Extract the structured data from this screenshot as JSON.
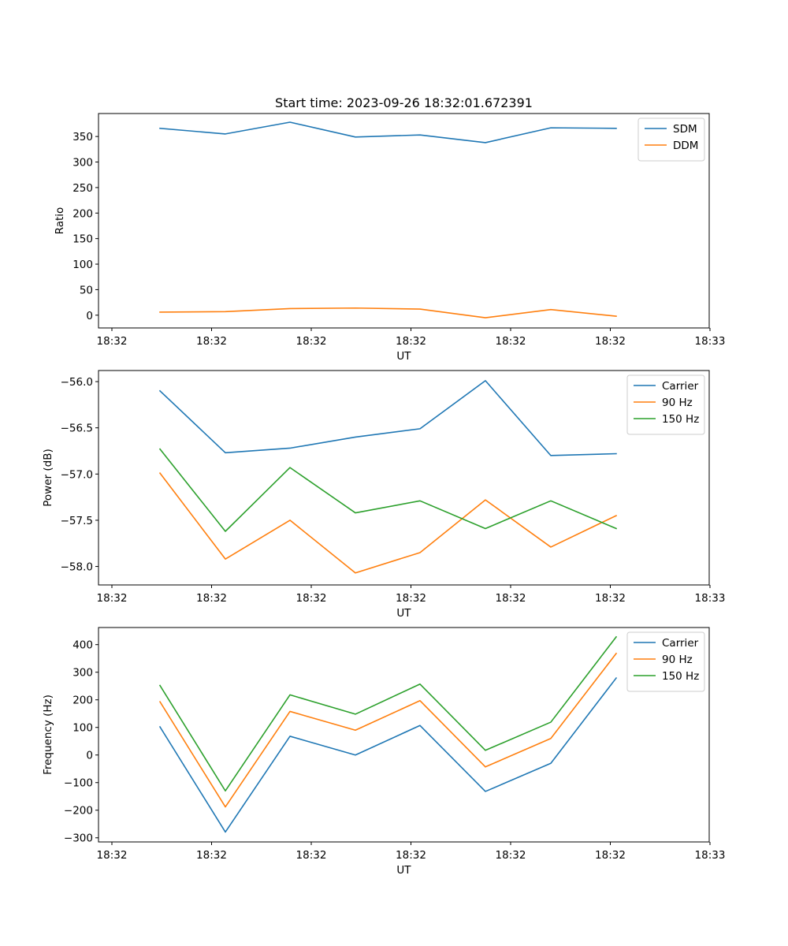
{
  "title": "Start time: 2023-09-26 18:32:01.672391",
  "x_tick_labels": [
    "18:32",
    "18:32",
    "18:32",
    "18:32",
    "18:32",
    "18:32",
    "18:33"
  ],
  "colors": {
    "blue": "#1f77b4",
    "orange": "#ff7f0e",
    "green": "#2ca02c"
  },
  "chart_data": [
    {
      "type": "line",
      "title": "Start time: 2023-09-26 18:32:01.672391",
      "xlabel": "UT",
      "ylabel": "Ratio",
      "ylim": [
        -25,
        395
      ],
      "yticks": [
        0,
        50,
        100,
        150,
        200,
        250,
        300,
        350
      ],
      "legend_position": "top-right",
      "series": [
        {
          "name": "SDM",
          "color": "#1f77b4",
          "values": [
            366,
            355,
            378,
            349,
            353,
            338,
            367,
            366
          ]
        },
        {
          "name": "DDM",
          "color": "#ff7f0e",
          "values": [
            6,
            7,
            13,
            14,
            12,
            -5,
            11,
            -2
          ]
        }
      ]
    },
    {
      "type": "line",
      "title": "",
      "xlabel": "UT",
      "ylabel": "Power (dB)",
      "ylim": [
        -58.2,
        -55.88
      ],
      "yticks": [
        -58.0,
        -57.5,
        -57.0,
        -56.5,
        -56.0
      ],
      "legend_position": "top-right",
      "series": [
        {
          "name": "Carrier",
          "color": "#1f77b4",
          "values": [
            -56.1,
            -56.77,
            -56.72,
            -56.6,
            -56.51,
            -55.99,
            -56.8,
            -56.78
          ]
        },
        {
          "name": "90 Hz",
          "color": "#ff7f0e",
          "values": [
            -56.99,
            -57.92,
            -57.5,
            -58.07,
            -57.85,
            -57.28,
            -57.79,
            -57.45
          ]
        },
        {
          "name": "150 Hz",
          "color": "#2ca02c",
          "values": [
            -56.73,
            -57.62,
            -56.93,
            -57.42,
            -57.29,
            -57.59,
            -57.29,
            -57.59
          ]
        }
      ]
    },
    {
      "type": "line",
      "title": "",
      "xlabel": "UT",
      "ylabel": "Frequency (Hz)",
      "ylim": [
        -315,
        462
      ],
      "yticks": [
        -300,
        -200,
        -100,
        0,
        100,
        200,
        300,
        400
      ],
      "legend_position": "top-right",
      "series": [
        {
          "name": "Carrier",
          "color": "#1f77b4",
          "values": [
            102,
            -279,
            68,
            0,
            107,
            -132,
            -30,
            279
          ]
        },
        {
          "name": "90 Hz",
          "color": "#ff7f0e",
          "values": [
            193,
            -188,
            158,
            90,
            197,
            -43,
            60,
            368
          ]
        },
        {
          "name": "150 Hz",
          "color": "#2ca02c",
          "values": [
            252,
            -130,
            218,
            148,
            257,
            17,
            119,
            428
          ]
        }
      ]
    }
  ]
}
